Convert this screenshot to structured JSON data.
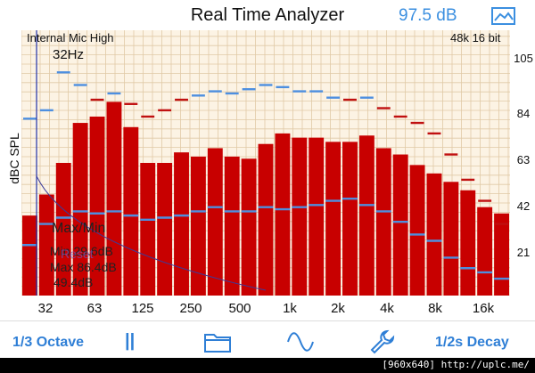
{
  "header": {
    "title": "Real Time Analyzer",
    "spl_value": "97.5 dB",
    "picture_icon": "picture-icon"
  },
  "plot": {
    "mic_label": "Internal Mic High",
    "format_label": "48k 16 bit",
    "selected_freq": "32Hz",
    "y_axis_label": "dBC SPL"
  },
  "overlay": {
    "maxmin": "Max/Min",
    "min": "Min 29.6dB",
    "max": "Max 86.4dB",
    "diff": "49.4dB",
    "reset": "Reset"
  },
  "chart_data": {
    "type": "bar",
    "ylabel": "dBC SPL",
    "ylim": [
      0,
      126
    ],
    "yticks": [
      "21",
      "42",
      "63",
      "84",
      "105"
    ],
    "xticks": [
      "32",
      "63",
      "125",
      "250",
      "500",
      "1k",
      "2k",
      "4k",
      "8k",
      "16k"
    ],
    "values": [
      38,
      48,
      63,
      82,
      85,
      92,
      80,
      63,
      63,
      68,
      66,
      70,
      66,
      65,
      72,
      77,
      75,
      75,
      73,
      73,
      76,
      70,
      67,
      62,
      58,
      54,
      50,
      42,
      39
    ],
    "peaks": [
      84,
      88,
      106,
      100,
      93,
      96,
      91,
      85,
      88,
      93,
      95,
      97,
      96,
      98,
      100,
      99,
      97,
      97,
      94,
      93,
      94,
      89,
      85,
      82,
      77,
      67,
      55,
      45,
      34
    ],
    "mins": [
      24,
      34,
      37,
      40,
      39,
      40,
      38,
      36,
      37,
      38,
      40,
      42,
      40,
      40,
      42,
      41,
      42,
      43,
      45,
      46,
      43,
      40,
      35,
      29,
      26,
      18,
      13,
      11,
      8
    ]
  },
  "toolbar": {
    "band": "1/3 Octave",
    "pause": "||",
    "folder_icon": "folder-icon",
    "wave_icon": "sine-wave-icon",
    "wrench_icon": "wrench-icon",
    "decay": "1/2s Decay"
  },
  "footer": {
    "credit": "[960x640] http://uplc.me/"
  },
  "colors": {
    "bar": "#c80000",
    "peak": "#c01010",
    "min_line": "#4d8fe0",
    "grid": "#e0c9a6",
    "accent": "#3b8fe0"
  }
}
